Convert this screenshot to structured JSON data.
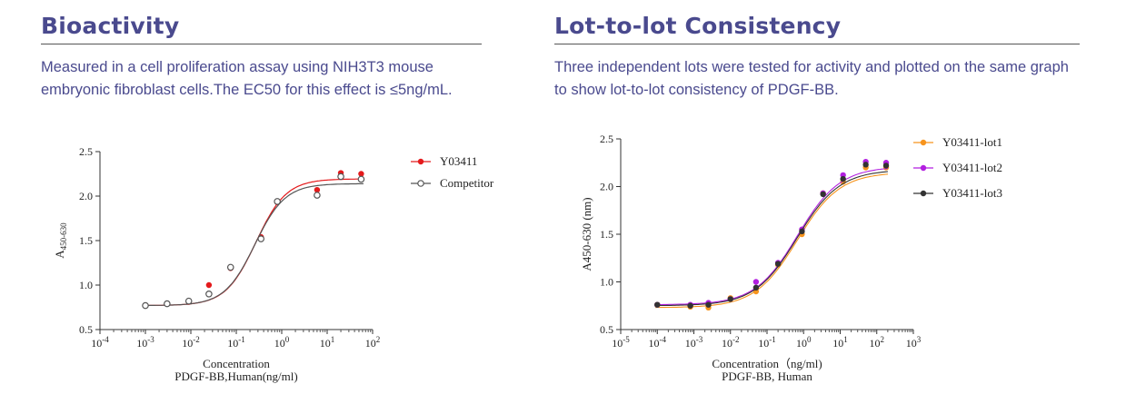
{
  "left": {
    "heading": "Bioactivity",
    "description": "Measured in a cell proliferation assay using NIH3T3 mouse embryonic fibroblast cells.The EC50 for this effect is ≤5ng/mL."
  },
  "right": {
    "heading": "Lot-to-lot Consistency",
    "description": "Three independent lots were tested for activity and plotted on the same graph to show lot-to-lot consistency of PDGF-BB."
  },
  "chart_data": [
    {
      "type": "scatter",
      "xscale": "log",
      "xlim_exp": [
        -4,
        2
      ],
      "x_tick_labels": [
        "10-4",
        "10-3",
        "10-2",
        "10-1",
        "100",
        "101",
        "102"
      ],
      "ylim": [
        0.5,
        2.5
      ],
      "y_ticks": [
        "0.5",
        "1.0",
        "1.5",
        "2.0",
        "2.5"
      ],
      "xlabel": "Concentration",
      "xlabel2": "PDGF-BB,Human(ng/ml)",
      "ylabel": "A",
      "ylabel_sub": "450-630",
      "legend_position": "top-right",
      "series": [
        {
          "name": "Y03411",
          "color": "#e41a1c",
          "marker": "filled-circle",
          "x": [
            0.001,
            0.003,
            0.009,
            0.025,
            0.075,
            0.35,
            0.8,
            6,
            20,
            56
          ],
          "y": [
            0.77,
            0.79,
            0.81,
            1.0,
            1.19,
            1.54,
            1.93,
            2.07,
            2.26,
            2.25
          ]
        },
        {
          "name": "Competitor",
          "color": "#555555",
          "marker": "open-circle",
          "x": [
            0.001,
            0.003,
            0.009,
            0.025,
            0.075,
            0.35,
            0.8,
            6,
            20,
            56
          ],
          "y": [
            0.77,
            0.79,
            0.82,
            0.9,
            1.2,
            1.52,
            1.94,
            2.01,
            2.22,
            2.19
          ]
        }
      ]
    },
    {
      "type": "scatter",
      "xscale": "log",
      "xlim_exp": [
        -5,
        3
      ],
      "x_tick_labels": [
        "10-5",
        "10-4",
        "10-3",
        "10-2",
        "10-1",
        "100",
        "101",
        "102",
        "103"
      ],
      "ylim": [
        0.5,
        2.5
      ],
      "y_ticks": [
        "0.5",
        "1.0",
        "1.5",
        "2.0",
        "2.5"
      ],
      "xlabel": "Concentration（ng/ml)",
      "xlabel2": "PDGF-BB, Human",
      "ylabel": "A450-630 (nm)",
      "legend_position": "top-right",
      "series": [
        {
          "name": "Y03411-lot1",
          "color": "#f7941d",
          "x": [
            0.0001,
            0.0008,
            0.0025,
            0.01,
            0.05,
            0.2,
            0.9,
            3.4,
            12,
            50,
            180
          ],
          "y": [
            0.76,
            0.74,
            0.73,
            0.83,
            0.9,
            1.18,
            1.5,
            1.93,
            2.05,
            2.2,
            2.2
          ]
        },
        {
          "name": "Y03411-lot2",
          "color": "#b21fe0",
          "x": [
            0.0001,
            0.0008,
            0.0025,
            0.01,
            0.05,
            0.2,
            0.9,
            3.4,
            12,
            50,
            180
          ],
          "y": [
            0.76,
            0.76,
            0.78,
            0.82,
            1.0,
            1.2,
            1.55,
            1.93,
            2.12,
            2.26,
            2.25
          ]
        },
        {
          "name": "Y03411-lot3",
          "color": "#333333",
          "x": [
            0.0001,
            0.0008,
            0.0025,
            0.01,
            0.05,
            0.2,
            0.9,
            3.4,
            12,
            50,
            180
          ],
          "y": [
            0.76,
            0.75,
            0.76,
            0.82,
            0.94,
            1.19,
            1.53,
            1.92,
            2.08,
            2.23,
            2.22
          ]
        }
      ]
    }
  ]
}
